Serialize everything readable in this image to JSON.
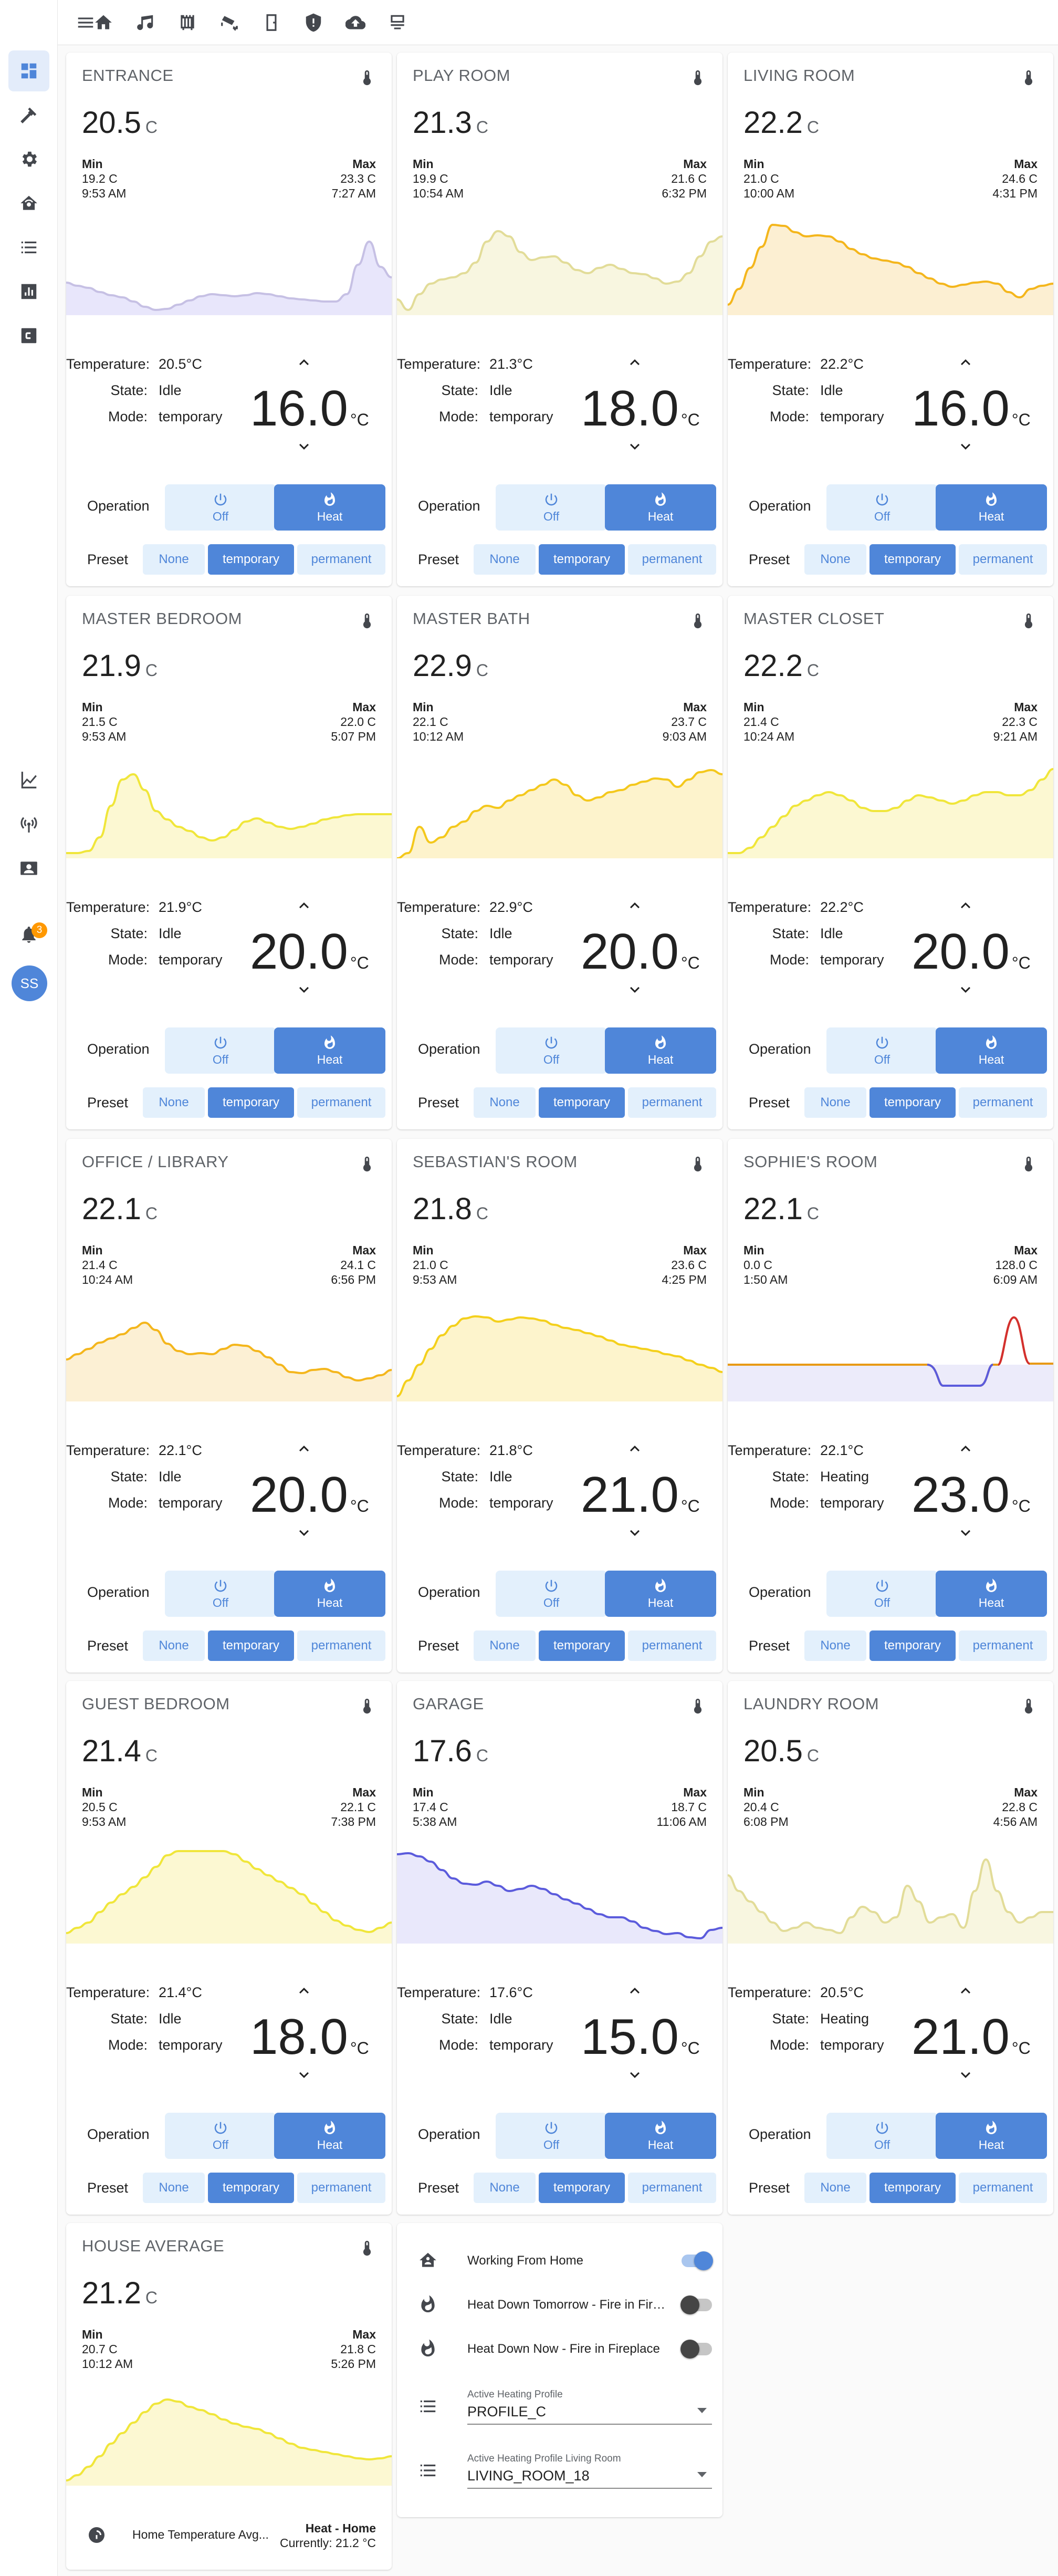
{
  "topbar": {
    "icons": [
      "home-icon",
      "music-icon",
      "radiator-icon",
      "cctv-icon",
      "door-icon",
      "shield-icon",
      "cloud-upload-icon",
      "server-icon"
    ]
  },
  "sidebar": {
    "items": [
      "dashboard-icon",
      "hammer-icon",
      "cog-icon",
      "home-automation-icon",
      "list-icon",
      "chart-bar-icon",
      "c-box-icon",
      "chart-line-icon",
      "radio-tower-icon",
      "account-box-icon"
    ],
    "notification_count": "3",
    "avatar_initials": "SS"
  },
  "labels": {
    "min": "Min",
    "max": "Max",
    "temperature": "Temperature:",
    "state": "State:",
    "mode": "Mode:",
    "operation": "Operation",
    "off": "Off",
    "heat": "Heat",
    "preset": "Preset",
    "none": "None",
    "temporary": "temporary",
    "permanent": "permanent",
    "unit": "C",
    "setpoint_unit": "°C"
  },
  "colors": {
    "accent": "#4f86d9",
    "accent_light": "#e3f0fc",
    "warm_dark": "#e89a16",
    "warm_mid": "#f4c81c",
    "yellow": "#f0e63a",
    "cool": "#5b5bdc",
    "lilac": "#c6c0e4"
  },
  "rooms": [
    {
      "name": "ENTRANCE",
      "temp": "20.5",
      "min": "19.2 C",
      "min_time": "9:53 AM",
      "max": "23.3 C",
      "max_time": "7:27 AM",
      "temperature": "20.5°C",
      "state": "Idle",
      "mode": "temporary",
      "setpoint": "16.0",
      "color": "#c6c0e4",
      "fill": "#e8e6fb",
      "curve": [
        62,
        56,
        52,
        44,
        38,
        34,
        26,
        16,
        10,
        12,
        20,
        28,
        36,
        40,
        38,
        36,
        38,
        42,
        40,
        36,
        32,
        30,
        28,
        26,
        26,
        40,
        96,
        140,
        92,
        72
      ]
    },
    {
      "name": "PLAY ROOM",
      "temp": "21.3",
      "min": "19.9 C",
      "min_time": "10:54 AM",
      "max": "21.6 C",
      "max_time": "6:32 PM",
      "temperature": "21.3°C",
      "state": "Idle",
      "mode": "temporary",
      "setpoint": "18.0",
      "color": "#e2dc98",
      "fill": "#f8f6e0",
      "curve": [
        30,
        10,
        40,
        60,
        68,
        72,
        80,
        100,
        140,
        160,
        150,
        120,
        105,
        110,
        112,
        100,
        86,
        80,
        90,
        96,
        88,
        80,
        78,
        70,
        60,
        64,
        80,
        112,
        140,
        150
      ]
    },
    {
      "name": "LIVING ROOM",
      "temp": "22.2",
      "min": "21.0 C",
      "min_time": "10:00 AM",
      "max": "24.6 C",
      "max_time": "4:31 PM",
      "temperature": "22.2°C",
      "state": "Idle",
      "mode": "temporary",
      "setpoint": "16.0",
      "color": "#f4b61c",
      "fill": "#fcefd2",
      "curve": [
        20,
        50,
        90,
        130,
        172,
        170,
        158,
        150,
        152,
        150,
        140,
        126,
        116,
        108,
        104,
        100,
        92,
        80,
        70,
        60,
        54,
        58,
        62,
        64,
        60,
        44,
        34,
        50,
        56,
        60
      ]
    },
    {
      "name": "MASTER BEDROOM",
      "temp": "21.9",
      "min": "21.5 C",
      "min_time": "9:53 AM",
      "max": "22.0 C",
      "max_time": "5:07 PM",
      "temperature": "21.9°C",
      "state": "Idle",
      "mode": "temporary",
      "setpoint": "20.0",
      "color": "#f0e63a",
      "fill": "#fcf8d2",
      "curve": [
        10,
        10,
        14,
        40,
        100,
        150,
        160,
        130,
        90,
        74,
        60,
        52,
        40,
        34,
        40,
        54,
        70,
        76,
        68,
        60,
        56,
        60,
        66,
        74,
        78,
        82,
        84,
        84,
        84,
        84
      ]
    },
    {
      "name": "MASTER BATH",
      "temp": "22.9",
      "min": "22.1 C",
      "min_time": "10:12 AM",
      "max": "23.7 C",
      "max_time": "9:03 AM",
      "temperature": "22.9°C",
      "state": "Idle",
      "mode": "temporary",
      "setpoint": "20.0",
      "color": "#f4c81c",
      "fill": "#fdf3cc",
      "curve": [
        0,
        10,
        60,
        30,
        40,
        60,
        70,
        90,
        100,
        96,
        110,
        120,
        130,
        140,
        150,
        140,
        120,
        110,
        116,
        126,
        130,
        140,
        146,
        152,
        150,
        136,
        150,
        164,
        168,
        160
      ]
    },
    {
      "name": "MASTER CLOSET",
      "temp": "22.2",
      "min": "21.4 C",
      "min_time": "10:24 AM",
      "max": "22.3 C",
      "max_time": "9:21 AM",
      "temperature": "22.2°C",
      "state": "Idle",
      "mode": "temporary",
      "setpoint": "20.0",
      "color": "#f0e63a",
      "fill": "#fcf8d2",
      "curve": [
        10,
        10,
        20,
        40,
        60,
        80,
        100,
        110,
        120,
        126,
        120,
        110,
        96,
        90,
        90,
        96,
        110,
        120,
        116,
        110,
        104,
        110,
        120,
        126,
        126,
        120,
        120,
        130,
        150,
        170
      ]
    },
    {
      "name": "OFFICE / LIBRARY",
      "temp": "22.1",
      "min": "21.4 C",
      "min_time": "10:24 AM",
      "max": "24.1 C",
      "max_time": "6:56 PM",
      "temperature": "22.1°C",
      "state": "Idle",
      "mode": "temporary",
      "setpoint": "20.0",
      "color": "#f4b61c",
      "fill": "#fcf0d4",
      "curve": [
        80,
        90,
        100,
        112,
        120,
        128,
        140,
        150,
        136,
        110,
        96,
        90,
        92,
        90,
        100,
        108,
        106,
        96,
        84,
        70,
        56,
        54,
        60,
        62,
        56,
        46,
        40,
        44,
        50,
        60
      ]
    },
    {
      "name": "SEBASTIAN'S ROOM",
      "temp": "21.8",
      "min": "21.0 C",
      "min_time": "9:53 AM",
      "max": "23.6 C",
      "max_time": "4:25 PM",
      "temperature": "21.8°C",
      "state": "Idle",
      "mode": "temporary",
      "setpoint": "21.0",
      "color": "#f4d01c",
      "fill": "#fdf4cc",
      "curve": [
        10,
        40,
        70,
        100,
        126,
        144,
        158,
        162,
        160,
        152,
        156,
        160,
        158,
        154,
        146,
        140,
        136,
        130,
        124,
        116,
        108,
        104,
        100,
        96,
        90,
        86,
        78,
        70,
        64,
        56
      ]
    },
    {
      "name": "SOPHIE'S ROOM",
      "temp": "22.1",
      "min": "0.0 C",
      "min_time": "1:50 AM",
      "max": "128.0 C",
      "max_time": "6:09 AM",
      "temperature": "22.1°C",
      "state": "Heating",
      "mode": "temporary",
      "setpoint": "23.0",
      "color": "#e89a16",
      "fill": "#ecebfa",
      "curve": []
    },
    {
      "name": "GUEST BEDROOM",
      "temp": "21.4",
      "min": "20.5 C",
      "min_time": "9:53 AM",
      "max": "22.1 C",
      "max_time": "7:38 PM",
      "temperature": "21.4°C",
      "state": "Idle",
      "mode": "temporary",
      "setpoint": "18.0",
      "color": "#f0e63a",
      "fill": "#fcf8d2",
      "curve": [
        20,
        30,
        40,
        60,
        78,
        94,
        108,
        126,
        146,
        168,
        176,
        176,
        176,
        176,
        176,
        170,
        156,
        142,
        130,
        118,
        106,
        94,
        76,
        60,
        44,
        34,
        26,
        22,
        30,
        40
      ]
    },
    {
      "name": "GARAGE",
      "temp": "17.6",
      "min": "17.4 C",
      "min_time": "5:38 AM",
      "max": "18.7 C",
      "max_time": "11:06 AM",
      "temperature": "17.6°C",
      "state": "Idle",
      "mode": "temporary",
      "setpoint": "15.0",
      "color": "#5b5bdc",
      "fill": "#e9e8fb",
      "curve": [
        170,
        172,
        166,
        156,
        140,
        124,
        114,
        112,
        118,
        110,
        100,
        104,
        110,
        104,
        94,
        84,
        76,
        66,
        56,
        50,
        50,
        42,
        30,
        24,
        18,
        20,
        12,
        10,
        26,
        30
      ]
    },
    {
      "name": "LAUNDRY ROOM",
      "temp": "20.5",
      "min": "20.4 C",
      "min_time": "6:08 PM",
      "max": "22.8 C",
      "max_time": "4:56 AM",
      "temperature": "20.5°C",
      "state": "Heating",
      "mode": "temporary",
      "setpoint": "21.0",
      "color": "#e2dc98",
      "fill": "#f8f6e0",
      "curve": [
        130,
        100,
        80,
        60,
        40,
        24,
        30,
        40,
        30,
        26,
        20,
        50,
        70,
        60,
        40,
        50,
        110,
        80,
        40,
        50,
        56,
        30,
        100,
        160,
        100,
        60,
        40,
        50,
        60,
        60
      ]
    }
  ],
  "house_average": {
    "name": "HOUSE AVERAGE",
    "temp": "21.2",
    "min": "20.7 C",
    "min_time": "10:12 AM",
    "max": "21.8 C",
    "max_time": "5:26 PM",
    "color": "#f0e63a",
    "fill": "#fcf8d2",
    "curve": [
      10,
      20,
      36,
      56,
      80,
      100,
      120,
      140,
      156,
      164,
      160,
      150,
      144,
      136,
      126,
      118,
      112,
      108,
      100,
      90,
      80,
      72,
      68,
      64,
      60,
      56,
      52,
      50,
      52,
      56
    ],
    "footer_name": "Home Temperature Avg...",
    "footer_state": "Heat - Home",
    "footer_current": "Currently: 21.2 °C"
  },
  "entities": {
    "working_from_home": {
      "name": "Working From Home",
      "state": "on"
    },
    "heat_down_tomorrow": {
      "name": "Heat Down Tomorrow - Fire in Fireplace",
      "state": "off"
    },
    "heat_down_now": {
      "name": "Heat Down Now - Fire in Fireplace",
      "state": "off"
    },
    "active_profile": {
      "label": "Active Heating Profile",
      "value": "PROFILE_C"
    },
    "active_profile_living": {
      "label": "Active Heating Profile Living Room",
      "value": "LIVING_ROOM_18"
    }
  }
}
